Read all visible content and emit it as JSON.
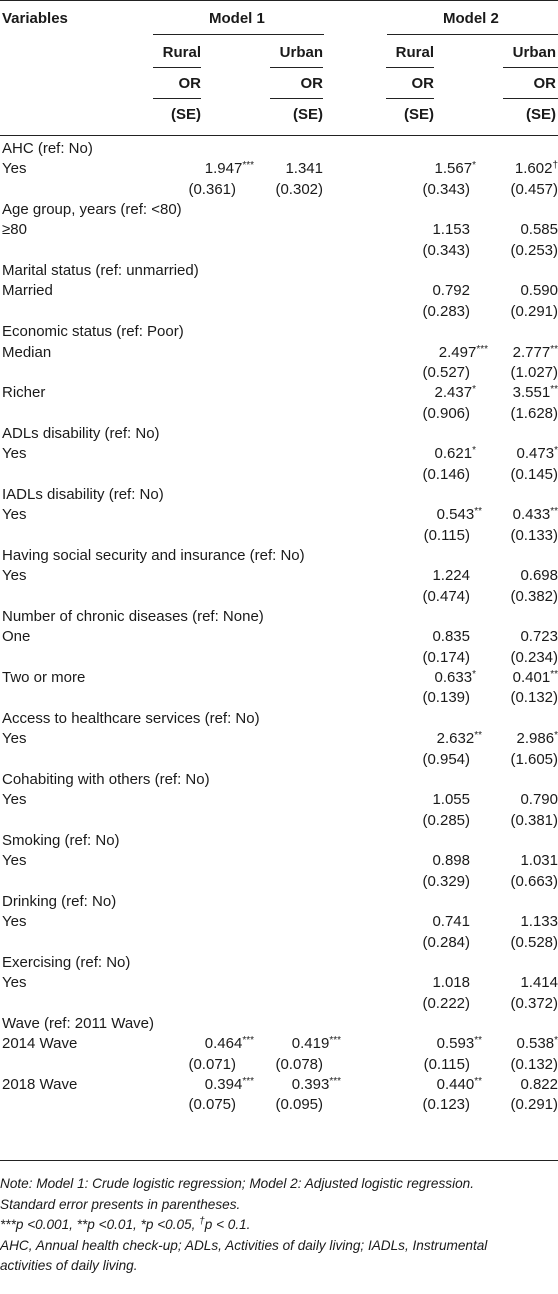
{
  "header": {
    "variables": "Variables",
    "model1": "Model 1",
    "model2": "Model 2",
    "rural": "Rural",
    "urban": "Urban",
    "or": "OR",
    "se": "(SE)"
  },
  "rows": [
    {
      "label": "AHC (ref: No)",
      "group": true
    },
    {
      "label": "Yes",
      "m1r": "1.947",
      "m1r_sup": "***",
      "m1u": "1.341",
      "m1u_sup": "",
      "m2r": "1.567",
      "m2r_sup": "*",
      "m2u": "1.602",
      "m2u_sup": "†"
    },
    {
      "se": true,
      "m1r": "(0.361)",
      "m1u": "(0.302)",
      "m2r": "(0.343)",
      "m2u": "(0.457)"
    },
    {
      "label": "Age group, years (ref: <80)",
      "group": true
    },
    {
      "label": "≥80",
      "m2r": "1.153",
      "m2u": "0.585"
    },
    {
      "se": true,
      "m2r": "(0.343)",
      "m2u": "(0.253)"
    },
    {
      "label": "Marital status (ref: unmarried)",
      "group": true
    },
    {
      "label": "Married",
      "m2r": "0.792",
      "m2u": "0.590"
    },
    {
      "se": true,
      "m2r": "(0.283)",
      "m2u": "(0.291)"
    },
    {
      "label": "Economic status (ref: Poor)",
      "group": true
    },
    {
      "label": "Median",
      "m2r": "2.497",
      "m2r_sup": "***",
      "m2u": "2.777",
      "m2u_sup": "**"
    },
    {
      "se": true,
      "m2r": "(0.527)",
      "m2u": "(1.027)"
    },
    {
      "label": "Richer",
      "m2r": "2.437",
      "m2r_sup": "*",
      "m2u": "3.551",
      "m2u_sup": "**"
    },
    {
      "se": true,
      "m2r": "(0.906)",
      "m2u": "(1.628)"
    },
    {
      "label": "ADLs disability (ref: No)",
      "group": true
    },
    {
      "label": "Yes",
      "m2r": "0.621",
      "m2r_sup": "*",
      "m2u": "0.473",
      "m2u_sup": "*"
    },
    {
      "se": true,
      "m2r": "(0.146)",
      "m2u": "(0.145)"
    },
    {
      "label": "IADLs disability (ref: No)",
      "group": true
    },
    {
      "label": "Yes",
      "m2r": "0.543",
      "m2r_sup": "**",
      "m2u": "0.433",
      "m2u_sup": "**"
    },
    {
      "se": true,
      "m2r": "(0.115)",
      "m2u": "(0.133)"
    },
    {
      "label": "Having social security and insurance (ref: No)",
      "group": true
    },
    {
      "label": "Yes",
      "m2r": "1.224",
      "m2u": "0.698"
    },
    {
      "se": true,
      "m2r": "(0.474)",
      "m2u": "(0.382)"
    },
    {
      "label": "Number of chronic diseases (ref: None)",
      "group": true
    },
    {
      "label": "One",
      "m2r": "0.835",
      "m2u": "0.723"
    },
    {
      "se": true,
      "m2r": "(0.174)",
      "m2u": "(0.234)"
    },
    {
      "label": "Two or more",
      "m2r": "0.633",
      "m2r_sup": "*",
      "m2u": "0.401",
      "m2u_sup": "**"
    },
    {
      "se": true,
      "m2r": "(0.139)",
      "m2u": "(0.132)"
    },
    {
      "label": "Access to healthcare services (ref: No)",
      "group": true
    },
    {
      "label": "Yes",
      "m2r": "2.632",
      "m2r_sup": "**",
      "m2u": "2.986",
      "m2u_sup": "*"
    },
    {
      "se": true,
      "m2r": "(0.954)",
      "m2u": "(1.605)"
    },
    {
      "label": "Cohabiting with others (ref: No)",
      "group": true
    },
    {
      "label": "Yes",
      "m2r": "1.055",
      "m2u": "0.790"
    },
    {
      "se": true,
      "m2r": "(0.285)",
      "m2u": "(0.381)"
    },
    {
      "label": "Smoking (ref: No)",
      "group": true
    },
    {
      "label": "Yes",
      "m2r": "0.898",
      "m2u": "1.031"
    },
    {
      "se": true,
      "m2r": "(0.329)",
      "m2u": "(0.663)"
    },
    {
      "label": "Drinking (ref: No)",
      "group": true
    },
    {
      "label": "Yes",
      "m2r": "0.741",
      "m2u": "1.133"
    },
    {
      "se": true,
      "m2r": "(0.284)",
      "m2u": "(0.528)"
    },
    {
      "label": "Exercising (ref: No)",
      "group": true
    },
    {
      "label": "Yes",
      "m2r": "1.018",
      "m2u": "1.414"
    },
    {
      "se": true,
      "m2r": "(0.222)",
      "m2u": "(0.372)"
    },
    {
      "label": "Wave (ref: 2011 Wave)",
      "group": true
    },
    {
      "label": "2014 Wave",
      "m1r": "0.464",
      "m1r_sup": "***",
      "m1u": "0.419",
      "m1u_sup": "***",
      "m2r": "0.593",
      "m2r_sup": "**",
      "m2u": "0.538",
      "m2u_sup": "*"
    },
    {
      "se": true,
      "m1r": "(0.071)",
      "m1u": "(0.078)",
      "m2r": "(0.115)",
      "m2u": "(0.132)"
    },
    {
      "label": "2018 Wave",
      "m1r": "0.394",
      "m1r_sup": "***",
      "m1u": "0.393",
      "m1u_sup": "***",
      "m2r": "0.440",
      "m2r_sup": "**",
      "m2u": "0.822",
      "m2u_sup": ""
    },
    {
      "se": true,
      "m1r": "(0.075)",
      "m1u": "(0.095)",
      "m2r": "(0.123)",
      "m2u": "(0.291)"
    }
  ],
  "notes": {
    "line1": "Note: Model 1: Crude logistic regression; Model 2: Adjusted logistic regression.",
    "line2": "Standard error presents in parentheses.",
    "line3_a": "***p <0.001, **p <0.01, *p <0.05, ",
    "line3_dagger": "†",
    "line3_b": "p < 0.1.",
    "line4": "AHC, Annual health check-up; ADLs, Activities of daily living; IADLs, Instrumental",
    "line5": "activities of daily living."
  }
}
